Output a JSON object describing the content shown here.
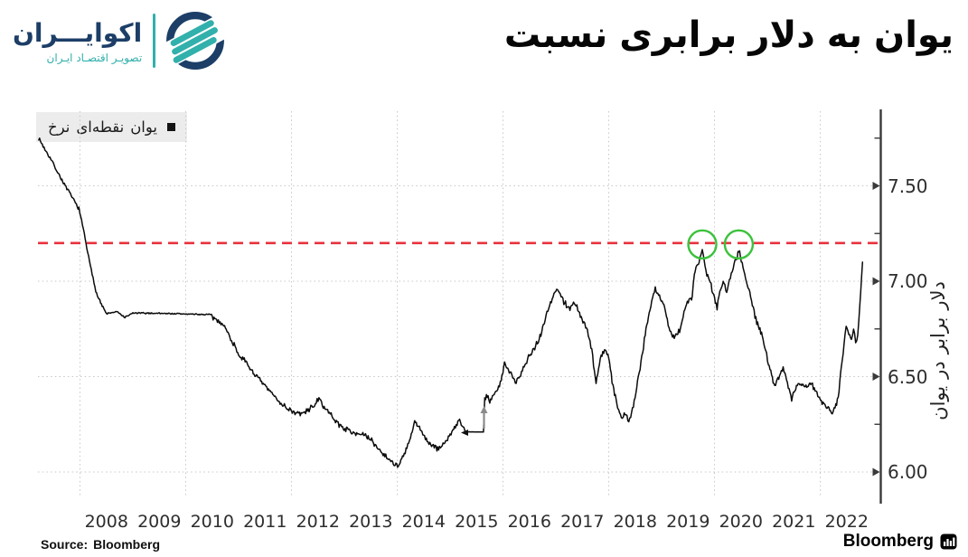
{
  "header": {
    "title": "نسبت برابری دلار به یوان",
    "logo": {
      "wordmark": "اکوایـــران",
      "tagline": "تصویـر اقتصـاد ایـران",
      "navy": "#1c3e67",
      "teal": "#31b0ac"
    }
  },
  "footer": {
    "source_label": "Source:",
    "source_value": "Bloomberg",
    "brand": "Bloomberg"
  },
  "chart_data": {
    "type": "line",
    "title": "نسبت برابری دلار به یوان",
    "legend": {
      "label": "نرخ نقطه‌ای یوان",
      "marker": "square",
      "position": "top-left"
    },
    "ylabel": "یوان در برابر دلار",
    "xlabel": "",
    "grid": "dotted",
    "x_ticks": [
      "2008",
      "2009",
      "2010",
      "2011",
      "2012",
      "2013",
      "2014",
      "2015",
      "2016",
      "2017",
      "2018",
      "2019",
      "2020",
      "2021",
      "2022"
    ],
    "x_grid_years": [
      2008,
      2010,
      2012,
      2014,
      2016,
      2018,
      2020,
      2022
    ],
    "xlim": [
      2007.2,
      2022.95
    ],
    "y_ticks": [
      {
        "label": "7.50",
        "value": 7.5
      },
      {
        "label": "7.00",
        "value": 7.0
      },
      {
        "label": "6.50",
        "value": 6.5
      },
      {
        "label": "6.00",
        "value": 6.0
      }
    ],
    "y_minor_ticks": [
      7.75,
      7.25,
      6.75,
      6.25
    ],
    "ylim": [
      5.88,
      7.89
    ],
    "reference_line": {
      "value": 7.2,
      "color": "#e8323e",
      "style": "dashed"
    },
    "highlight_circles": [
      {
        "t": 2019.77,
        "value": 7.2
      },
      {
        "t": 2020.46,
        "value": 7.2
      }
    ],
    "highlight_color": "#3bc23b",
    "series": [
      {
        "name": "نرخ نقطه‌ای یوان",
        "color": "#0b0b0b",
        "points": [
          [
            2007.22,
            7.75
          ],
          [
            2007.32,
            7.7
          ],
          [
            2007.45,
            7.64
          ],
          [
            2007.58,
            7.57
          ],
          [
            2007.72,
            7.5
          ],
          [
            2007.85,
            7.44
          ],
          [
            2007.98,
            7.38
          ],
          [
            2008.08,
            7.25
          ],
          [
            2008.18,
            7.1
          ],
          [
            2008.3,
            6.95
          ],
          [
            2008.42,
            6.87
          ],
          [
            2008.5,
            6.83
          ],
          [
            2008.7,
            6.84
          ],
          [
            2008.85,
            6.81
          ],
          [
            2009.0,
            6.833
          ],
          [
            2009.5,
            6.832
          ],
          [
            2010.0,
            6.828
          ],
          [
            2010.44,
            6.825
          ],
          [
            2010.55,
            6.8
          ],
          [
            2010.7,
            6.78
          ],
          [
            2010.85,
            6.7
          ],
          [
            2011.0,
            6.62
          ],
          [
            2011.2,
            6.55
          ],
          [
            2011.4,
            6.48
          ],
          [
            2011.6,
            6.42
          ],
          [
            2011.8,
            6.36
          ],
          [
            2011.95,
            6.33
          ],
          [
            2012.1,
            6.305
          ],
          [
            2012.25,
            6.31
          ],
          [
            2012.4,
            6.345
          ],
          [
            2012.52,
            6.38
          ],
          [
            2012.65,
            6.33
          ],
          [
            2012.8,
            6.28
          ],
          [
            2012.95,
            6.235
          ],
          [
            2013.15,
            6.21
          ],
          [
            2013.35,
            6.195
          ],
          [
            2013.5,
            6.17
          ],
          [
            2013.65,
            6.12
          ],
          [
            2013.85,
            6.065
          ],
          [
            2014.02,
            6.03
          ],
          [
            2014.15,
            6.1
          ],
          [
            2014.25,
            6.18
          ],
          [
            2014.33,
            6.26
          ],
          [
            2014.45,
            6.22
          ],
          [
            2014.6,
            6.15
          ],
          [
            2014.75,
            6.12
          ],
          [
            2014.9,
            6.15
          ],
          [
            2015.05,
            6.22
          ],
          [
            2015.18,
            6.27
          ],
          [
            2015.26,
            6.22
          ],
          [
            2015.3,
            6.21
          ],
          [
            2015.63,
            6.21
          ],
          [
            2015.655,
            6.4
          ],
          [
            2015.75,
            6.38
          ],
          [
            2015.85,
            6.41
          ],
          [
            2015.95,
            6.46
          ],
          [
            2016.03,
            6.57
          ],
          [
            2016.12,
            6.52
          ],
          [
            2016.25,
            6.47
          ],
          [
            2016.4,
            6.56
          ],
          [
            2016.55,
            6.63
          ],
          [
            2016.7,
            6.71
          ],
          [
            2016.85,
            6.85
          ],
          [
            2016.98,
            6.94
          ],
          [
            2017.05,
            6.96
          ],
          [
            2017.15,
            6.89
          ],
          [
            2017.25,
            6.86
          ],
          [
            2017.35,
            6.89
          ],
          [
            2017.48,
            6.81
          ],
          [
            2017.58,
            6.75
          ],
          [
            2017.68,
            6.64
          ],
          [
            2017.76,
            6.47
          ],
          [
            2017.84,
            6.59
          ],
          [
            2017.92,
            6.65
          ],
          [
            2018.0,
            6.6
          ],
          [
            2018.08,
            6.45
          ],
          [
            2018.17,
            6.34
          ],
          [
            2018.24,
            6.28
          ],
          [
            2018.31,
            6.31
          ],
          [
            2018.38,
            6.27
          ],
          [
            2018.45,
            6.33
          ],
          [
            2018.53,
            6.44
          ],
          [
            2018.61,
            6.58
          ],
          [
            2018.69,
            6.72
          ],
          [
            2018.78,
            6.86
          ],
          [
            2018.88,
            6.965
          ],
          [
            2018.96,
            6.92
          ],
          [
            2019.06,
            6.86
          ],
          [
            2019.14,
            6.75
          ],
          [
            2019.24,
            6.7
          ],
          [
            2019.34,
            6.74
          ],
          [
            2019.44,
            6.86
          ],
          [
            2019.52,
            6.9
          ],
          [
            2019.58,
            6.92
          ],
          [
            2019.62,
            7.04
          ],
          [
            2019.68,
            7.08
          ],
          [
            2019.77,
            7.16
          ],
          [
            2019.84,
            7.05
          ],
          [
            2019.92,
            7.0
          ],
          [
            2020.0,
            6.91
          ],
          [
            2020.05,
            6.86
          ],
          [
            2020.12,
            6.97
          ],
          [
            2020.18,
            7.0
          ],
          [
            2020.23,
            6.94
          ],
          [
            2020.3,
            7.03
          ],
          [
            2020.37,
            7.09
          ],
          [
            2020.46,
            7.16
          ],
          [
            2020.54,
            7.08
          ],
          [
            2020.62,
            6.99
          ],
          [
            2020.7,
            6.9
          ],
          [
            2020.8,
            6.78
          ],
          [
            2020.92,
            6.7
          ],
          [
            2021.02,
            6.56
          ],
          [
            2021.14,
            6.46
          ],
          [
            2021.23,
            6.5
          ],
          [
            2021.3,
            6.54
          ],
          [
            2021.38,
            6.47
          ],
          [
            2021.46,
            6.39
          ],
          [
            2021.55,
            6.45
          ],
          [
            2021.65,
            6.47
          ],
          [
            2021.73,
            6.44
          ],
          [
            2021.82,
            6.47
          ],
          [
            2021.92,
            6.42
          ],
          [
            2022.02,
            6.375
          ],
          [
            2022.12,
            6.345
          ],
          [
            2022.21,
            6.315
          ],
          [
            2022.28,
            6.34
          ],
          [
            2022.34,
            6.39
          ],
          [
            2022.4,
            6.56
          ],
          [
            2022.45,
            6.67
          ],
          [
            2022.49,
            6.78
          ],
          [
            2022.54,
            6.71
          ],
          [
            2022.59,
            6.7
          ],
          [
            2022.63,
            6.745
          ],
          [
            2022.67,
            6.675
          ],
          [
            2022.71,
            6.71
          ],
          [
            2022.75,
            6.88
          ],
          [
            2022.78,
            7.02
          ],
          [
            2022.8,
            7.1
          ]
        ],
        "jitter_segments": [
          [
            2007.2,
            2008.45,
            0.007
          ],
          [
            2008.45,
            2010.44,
            0.003
          ],
          [
            2010.44,
            2015.27,
            0.011
          ],
          [
            2015.27,
            2015.64,
            0.001
          ],
          [
            2015.64,
            2022.82,
            0.0135
          ]
        ]
      }
    ]
  }
}
